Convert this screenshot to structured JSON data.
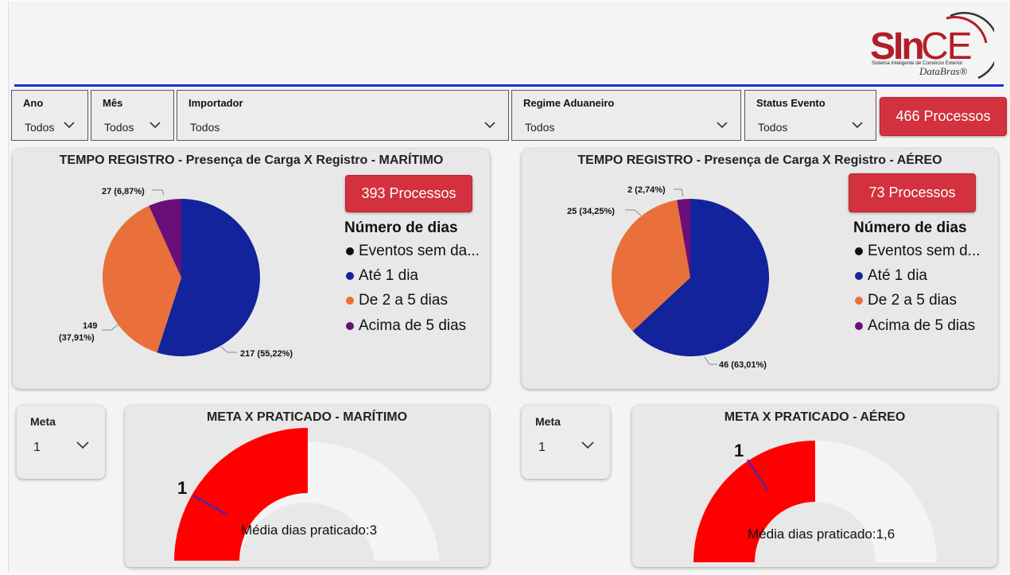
{
  "logo": {
    "brand_prefix": "SIn",
    "brand_suffix": "CE",
    "tagline": "Sistema Inteligente de Comércio Exterior",
    "company": "DataBras®"
  },
  "filters": [
    {
      "label": "Ano",
      "value": "Todos"
    },
    {
      "label": "Mês",
      "value": "Todos"
    },
    {
      "label": "Importador",
      "value": "Todos"
    },
    {
      "label": "Regime Aduaneiro",
      "value": "Todos"
    },
    {
      "label": "Status Evento",
      "value": "Todos"
    }
  ],
  "total_button": "466 Processos",
  "colors": {
    "navy": "#13239b",
    "orange": "#e9703a",
    "purple": "#6a0e7a",
    "black": "#111111",
    "red": "#ff0000",
    "track": "#f4f4f4",
    "needle": "#2b2bd0"
  },
  "maritimo": {
    "title": "TEMPO REGISTRO - Presença de Carga X Registro - MARÍTIMO",
    "button": "393 Processos",
    "legend_title": "Número de dias",
    "legend": [
      "Eventos sem da...",
      "Até 1 dia",
      "De 2 a 5 dias",
      "Acima de 5 dias"
    ],
    "labels": {
      "purple": "27 (6,87%)",
      "orange_count": "149",
      "orange_pct": "(37,91%)",
      "navy": "217 (55,22%)"
    }
  },
  "aereo": {
    "title": "TEMPO REGISTRO - Presença de Carga X Registro - AÉREO",
    "button": "73 Processos",
    "legend_title": "Número de dias",
    "legend": [
      "Eventos sem d...",
      "Até 1 dia",
      "De 2 a 5 dias",
      "Acima de 5 dias"
    ],
    "labels": {
      "purple": "2 (2,74%)",
      "orange": "25 (34,25%)",
      "navy": "46 (63,01%)"
    }
  },
  "meta_maritimo": {
    "label": "Meta",
    "value": "1"
  },
  "meta_aereo": {
    "label": "Meta",
    "value": "1"
  },
  "gauge_maritimo": {
    "title": "META X PRATICADO - MARÍTIMO",
    "target_label": "1",
    "text": "Média dias praticado:3"
  },
  "gauge_aereo": {
    "title": "META X PRATICADO - AÉREO",
    "target_label": "1",
    "text": "Média dias praticado:1,6"
  }
}
